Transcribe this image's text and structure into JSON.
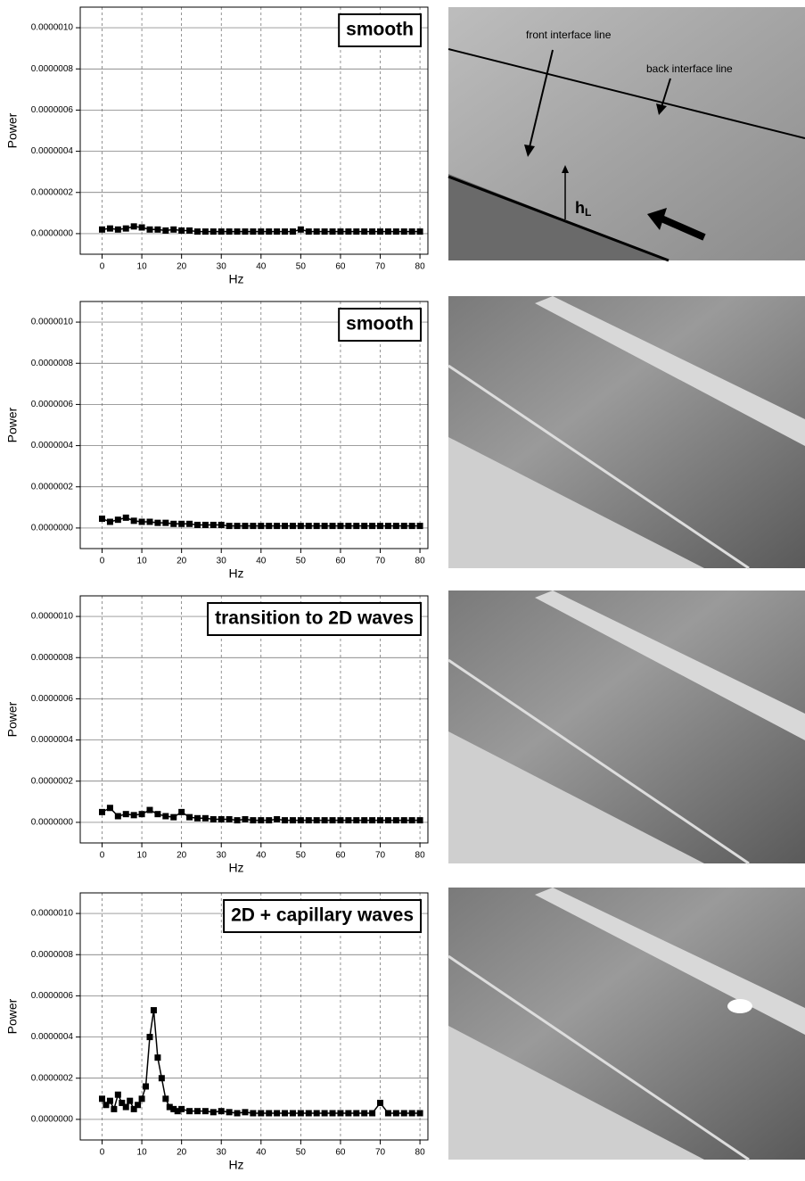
{
  "chart_data": [
    {
      "type": "scatter",
      "label": "smooth",
      "xlabel": "Hz",
      "ylabel": "Power",
      "color": "#000000",
      "marker": "square",
      "grid": true,
      "xlim": [
        -5.5,
        82
      ],
      "ylim": [
        -1e-07,
        1.1e-06
      ],
      "xticks": [
        0,
        10,
        20,
        30,
        40,
        50,
        60,
        70,
        80
      ],
      "yticks": [
        {
          "value": 0,
          "label": "0.0000000"
        },
        {
          "value": 2e-07,
          "label": "0.0000002"
        },
        {
          "value": 4e-07,
          "label": "0.0000004"
        },
        {
          "value": 6e-07,
          "label": "0.0000006"
        },
        {
          "value": 8e-07,
          "label": "0.0000008"
        },
        {
          "value": 1e-06,
          "label": "0.0000010"
        }
      ],
      "x": [
        0,
        2,
        4,
        6,
        8,
        10,
        12,
        14,
        16,
        18,
        20,
        22,
        24,
        26,
        28,
        30,
        32,
        34,
        36,
        38,
        40,
        42,
        44,
        46,
        48,
        50,
        52,
        54,
        56,
        58,
        60,
        62,
        64,
        66,
        68,
        70,
        72,
        74,
        76,
        78,
        80
      ],
      "values": [
        2e-08,
        2.5e-08,
        2e-08,
        2.5e-08,
        3.5e-08,
        3e-08,
        2e-08,
        2e-08,
        1.5e-08,
        2e-08,
        1.5e-08,
        1.5e-08,
        1e-08,
        1e-08,
        1e-08,
        1e-08,
        1e-08,
        1e-08,
        1e-08,
        1e-08,
        1e-08,
        1e-08,
        1e-08,
        1e-08,
        1e-08,
        2e-08,
        1e-08,
        1e-08,
        1e-08,
        1e-08,
        1e-08,
        1e-08,
        1e-08,
        1e-08,
        1e-08,
        1e-08,
        1e-08,
        1e-08,
        1e-08,
        1e-08,
        1e-08
      ]
    },
    {
      "type": "scatter",
      "label": "smooth",
      "xlabel": "Hz",
      "ylabel": "Power",
      "color": "#000000",
      "marker": "square",
      "grid": true,
      "xlim": [
        -5.5,
        82
      ],
      "ylim": [
        -1e-07,
        1.1e-06
      ],
      "xticks": [
        0,
        10,
        20,
        30,
        40,
        50,
        60,
        70,
        80
      ],
      "yticks": [
        {
          "value": 0,
          "label": "0.0000000"
        },
        {
          "value": 2e-07,
          "label": "0.0000002"
        },
        {
          "value": 4e-07,
          "label": "0.0000004"
        },
        {
          "value": 6e-07,
          "label": "0.0000006"
        },
        {
          "value": 8e-07,
          "label": "0.0000008"
        },
        {
          "value": 1e-06,
          "label": "0.0000010"
        }
      ],
      "x": [
        0,
        2,
        4,
        6,
        8,
        10,
        12,
        14,
        16,
        18,
        20,
        22,
        24,
        26,
        28,
        30,
        32,
        34,
        36,
        38,
        40,
        42,
        44,
        46,
        48,
        50,
        52,
        54,
        56,
        58,
        60,
        62,
        64,
        66,
        68,
        70,
        72,
        74,
        76,
        78,
        80
      ],
      "values": [
        4.5e-08,
        3e-08,
        4e-08,
        5e-08,
        3.5e-08,
        3e-08,
        3e-08,
        2.5e-08,
        2.5e-08,
        2e-08,
        2e-08,
        2e-08,
        1.5e-08,
        1.5e-08,
        1.5e-08,
        1.5e-08,
        1e-08,
        1e-08,
        1e-08,
        1e-08,
        1e-08,
        1e-08,
        1e-08,
        1e-08,
        1e-08,
        1e-08,
        1e-08,
        1e-08,
        1e-08,
        1e-08,
        1e-08,
        1e-08,
        1e-08,
        1e-08,
        1e-08,
        1e-08,
        1e-08,
        1e-08,
        1e-08,
        1e-08,
        1e-08
      ]
    },
    {
      "type": "scatter",
      "label": "transition to 2D waves",
      "xlabel": "Hz",
      "ylabel": "Power",
      "color": "#000000",
      "marker": "square",
      "grid": true,
      "xlim": [
        -5.5,
        82
      ],
      "ylim": [
        -1e-07,
        1.1e-06
      ],
      "xticks": [
        0,
        10,
        20,
        30,
        40,
        50,
        60,
        70,
        80
      ],
      "yticks": [
        {
          "value": 0,
          "label": "0.0000000"
        },
        {
          "value": 2e-07,
          "label": "0.0000002"
        },
        {
          "value": 4e-07,
          "label": "0.0000004"
        },
        {
          "value": 6e-07,
          "label": "0.0000006"
        },
        {
          "value": 8e-07,
          "label": "0.0000008"
        },
        {
          "value": 1e-06,
          "label": "0.0000010"
        }
      ],
      "x": [
        0,
        2,
        4,
        6,
        8,
        10,
        12,
        14,
        16,
        18,
        20,
        22,
        24,
        26,
        28,
        30,
        32,
        34,
        36,
        38,
        40,
        42,
        44,
        46,
        48,
        50,
        52,
        54,
        56,
        58,
        60,
        62,
        64,
        66,
        68,
        70,
        72,
        74,
        76,
        78,
        80
      ],
      "values": [
        5e-08,
        7e-08,
        3e-08,
        4e-08,
        3.5e-08,
        4e-08,
        6e-08,
        4e-08,
        3e-08,
        2.5e-08,
        5e-08,
        2.5e-08,
        2e-08,
        2e-08,
        1.5e-08,
        1.5e-08,
        1.5e-08,
        1e-08,
        1.5e-08,
        1e-08,
        1e-08,
        1e-08,
        1.5e-08,
        1e-08,
        1e-08,
        1e-08,
        1e-08,
        1e-08,
        1e-08,
        1e-08,
        1e-08,
        1e-08,
        1e-08,
        1e-08,
        1e-08,
        1e-08,
        1e-08,
        1e-08,
        1e-08,
        1e-08,
        1e-08
      ]
    },
    {
      "type": "scatter",
      "label": "2D + capillary waves",
      "xlabel": "Hz",
      "ylabel": "Power",
      "color": "#000000",
      "marker": "square",
      "grid": true,
      "xlim": [
        -5.5,
        82
      ],
      "ylim": [
        -1e-07,
        1.1e-06
      ],
      "xticks": [
        0,
        10,
        20,
        30,
        40,
        50,
        60,
        70,
        80
      ],
      "yticks": [
        {
          "value": 0,
          "label": "0.0000000"
        },
        {
          "value": 2e-07,
          "label": "0.0000002"
        },
        {
          "value": 4e-07,
          "label": "0.0000004"
        },
        {
          "value": 6e-07,
          "label": "0.0000006"
        },
        {
          "value": 8e-07,
          "label": "0.0000008"
        },
        {
          "value": 1e-06,
          "label": "0.0000010"
        }
      ],
      "x": [
        0,
        1,
        2,
        3,
        4,
        5,
        6,
        7,
        8,
        9,
        10,
        11,
        12,
        13,
        14,
        15,
        16,
        17,
        18,
        19,
        20,
        22,
        24,
        26,
        28,
        30,
        32,
        34,
        36,
        38,
        40,
        42,
        44,
        46,
        48,
        50,
        52,
        54,
        56,
        58,
        60,
        62,
        64,
        66,
        68,
        70,
        72,
        74,
        76,
        78,
        80
      ],
      "values": [
        1e-07,
        7e-08,
        9e-08,
        5e-08,
        1.2e-07,
        8e-08,
        6e-08,
        9e-08,
        5e-08,
        7e-08,
        1e-07,
        1.6e-07,
        4e-07,
        5.3e-07,
        3e-07,
        2e-07,
        1e-07,
        6e-08,
        5e-08,
        4e-08,
        5e-08,
        4e-08,
        4e-08,
        4e-08,
        3.5e-08,
        4e-08,
        3.5e-08,
        3e-08,
        3.5e-08,
        3e-08,
        3e-08,
        3e-08,
        3e-08,
        3e-08,
        3e-08,
        3e-08,
        3e-08,
        3e-08,
        3e-08,
        3e-08,
        3e-08,
        3e-08,
        3e-08,
        3e-08,
        3e-08,
        8e-08,
        3e-08,
        3e-08,
        3e-08,
        3e-08,
        3e-08
      ]
    }
  ],
  "photo_annotations": {
    "front_label": "front interface line",
    "back_label": "back interface line",
    "height_symbol": "h",
    "height_subscript": "L"
  }
}
